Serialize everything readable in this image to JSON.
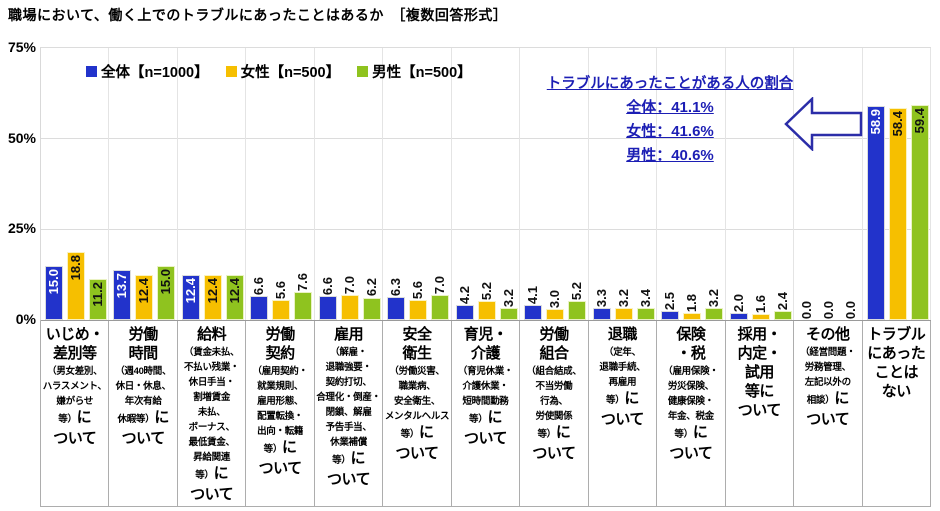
{
  "page_title": "職場において、働く上でのトラブルにあったことはあるか　［複数回答形式］",
  "annotation": {
    "title": "トラブルにあったことがある人の割合",
    "lines": [
      "全体：41.1%",
      "女性：41.6%",
      "男性：40.6%"
    ],
    "text_color": "#1c1eb4",
    "arrow_icon": "left-block-arrow"
  },
  "chart_data": {
    "type": "bar",
    "title": "職場において、働く上でのトラブルにあったことはあるか　［複数回答形式］",
    "xlabel": "",
    "ylabel": "",
    "ylim": [
      0,
      75
    ],
    "yticks": [
      "75%",
      "50%",
      "25%",
      "0%"
    ],
    "grid": "horizontal-and-category-separators",
    "legend_position": "top-left-inside",
    "value_label_format": "one-decimal, rotated 90° counterclockwise",
    "series": [
      {
        "key": "total",
        "name": "全体【n=1000】",
        "color": "#2233cb",
        "inside_label_color": "#ffffff"
      },
      {
        "key": "female",
        "name": "女性【n=500】",
        "color": "#f6bf00",
        "inside_label_color": "#111111"
      },
      {
        "key": "male",
        "name": "男性【n=500】",
        "color": "#8fc31f",
        "inside_label_color": "#111111"
      }
    ],
    "categories": [
      {
        "label": "いじめ・差別等（男女差別、ハラスメント、嫌がらせ等）について",
        "values": [
          15.0,
          18.8,
          11.2
        ],
        "label_lines": [
          [
            [
              "いじめ・",
              "b"
            ]
          ],
          [
            [
              "差別等",
              "b"
            ]
          ],
          [
            [
              "（男女差別、",
              "s"
            ]
          ],
          [
            [
              "ハラスメント、",
              "s"
            ]
          ],
          [
            [
              "嫌がらせ",
              "s"
            ]
          ],
          [
            [
              "等）",
              "s"
            ],
            [
              "に",
              "b"
            ]
          ],
          [
            [
              "ついて",
              "b"
            ]
          ]
        ]
      },
      {
        "label": "労働時間（週40時間、休日・休息、年次有給休暇等）について",
        "values": [
          13.7,
          12.4,
          15.0
        ],
        "label_lines": [
          [
            [
              "労働",
              "b"
            ]
          ],
          [
            [
              "時間",
              "b"
            ]
          ],
          [
            [
              "（週40時間、",
              "s"
            ]
          ],
          [
            [
              "休日・休息、",
              "s"
            ]
          ],
          [
            [
              "年次有給",
              "s"
            ]
          ],
          [
            [
              "休暇等）",
              "s"
            ],
            [
              "に",
              "b"
            ]
          ],
          [
            [
              "ついて",
              "b"
            ]
          ]
        ]
      },
      {
        "label": "給料（賃金未払、不払い残業・休日手当・割増賃金未払、ボーナス、最低賃金、昇給関連等）について",
        "values": [
          12.4,
          12.4,
          12.4
        ],
        "label_lines": [
          [
            [
              "給料",
              "b"
            ]
          ],
          [
            [
              "（賃金未払、",
              "s"
            ]
          ],
          [
            [
              "不払い残業・",
              "s"
            ]
          ],
          [
            [
              "休日手当・",
              "s"
            ]
          ],
          [
            [
              "割増賃金",
              "s"
            ]
          ],
          [
            [
              "未払、",
              "s"
            ]
          ],
          [
            [
              "ボーナス、",
              "s"
            ]
          ],
          [
            [
              "最低賃金、",
              "s"
            ]
          ],
          [
            [
              "昇給関連",
              "s"
            ]
          ],
          [
            [
              "等）",
              "s"
            ],
            [
              "に",
              "b"
            ]
          ],
          [
            [
              "ついて",
              "b"
            ]
          ]
        ]
      },
      {
        "label": "労働契約（雇用契約・就業規則、雇用形態、配置転換・出向・転籍等）について",
        "values": [
          6.6,
          5.6,
          7.6
        ],
        "label_lines": [
          [
            [
              "労働",
              "b"
            ]
          ],
          [
            [
              "契約",
              "b"
            ]
          ],
          [
            [
              "（雇用契約・",
              "s"
            ]
          ],
          [
            [
              "就業規則、",
              "s"
            ]
          ],
          [
            [
              "雇用形態、",
              "s"
            ]
          ],
          [
            [
              "配置転換・",
              "s"
            ]
          ],
          [
            [
              "出向・転籍",
              "s"
            ]
          ],
          [
            [
              "等）",
              "s"
            ],
            [
              "に",
              "b"
            ]
          ],
          [
            [
              "ついて",
              "b"
            ]
          ]
        ]
      },
      {
        "label": "雇用（解雇・退職強要・契約打切、合理化・倒産・閉鎖、解雇予告手当、休業補償等）について",
        "values": [
          6.6,
          7.0,
          6.2
        ],
        "label_lines": [
          [
            [
              "雇用",
              "b"
            ]
          ],
          [
            [
              "（解雇・",
              "s"
            ]
          ],
          [
            [
              "退職強要・",
              "s"
            ]
          ],
          [
            [
              "契約打切、",
              "s"
            ]
          ],
          [
            [
              "合理化・倒産・",
              "s"
            ]
          ],
          [
            [
              "閉鎖、解雇",
              "s"
            ]
          ],
          [
            [
              "予告手当、",
              "s"
            ]
          ],
          [
            [
              "休業補償",
              "s"
            ]
          ],
          [
            [
              "等）",
              "s"
            ],
            [
              "に",
              "b"
            ]
          ],
          [
            [
              "ついて",
              "b"
            ]
          ]
        ]
      },
      {
        "label": "安全衛生（労働災害、職業病、安全衛生、メンタルヘルス等）について",
        "values": [
          6.3,
          5.6,
          7.0
        ],
        "label_lines": [
          [
            [
              "安全",
              "b"
            ]
          ],
          [
            [
              "衛生",
              "b"
            ]
          ],
          [
            [
              "（労働災害、",
              "s"
            ]
          ],
          [
            [
              "職業病、",
              "s"
            ]
          ],
          [
            [
              "安全衛生、",
              "s"
            ]
          ],
          [
            [
              "メンタルヘルス",
              "s"
            ]
          ],
          [
            [
              "等）",
              "s"
            ],
            [
              "に",
              "b"
            ]
          ],
          [
            [
              "ついて",
              "b"
            ]
          ]
        ]
      },
      {
        "label": "育児・介護（育児休業・介護休業・短時間勤務等）について",
        "values": [
          4.2,
          5.2,
          3.2
        ],
        "label_lines": [
          [
            [
              "育児・",
              "b"
            ]
          ],
          [
            [
              "介護",
              "b"
            ]
          ],
          [
            [
              "（育児休業・",
              "s"
            ]
          ],
          [
            [
              "介護休業・",
              "s"
            ]
          ],
          [
            [
              "短時間勤務",
              "s"
            ]
          ],
          [
            [
              "等）",
              "s"
            ],
            [
              "に",
              "b"
            ]
          ],
          [
            [
              "ついて",
              "b"
            ]
          ]
        ]
      },
      {
        "label": "労働組合（組合結成、不当労働行為、労使関係等）について",
        "values": [
          4.1,
          3.0,
          5.2
        ],
        "label_lines": [
          [
            [
              "労働",
              "b"
            ]
          ],
          [
            [
              "組合",
              "b"
            ]
          ],
          [
            [
              "（組合結成、",
              "s"
            ]
          ],
          [
            [
              "不当労働",
              "s"
            ]
          ],
          [
            [
              "行為、",
              "s"
            ]
          ],
          [
            [
              "労使関係",
              "s"
            ]
          ],
          [
            [
              "等）",
              "s"
            ],
            [
              "に",
              "b"
            ]
          ],
          [
            [
              "ついて",
              "b"
            ]
          ]
        ]
      },
      {
        "label": "退職（定年、退職手続、再雇用等）について",
        "values": [
          3.3,
          3.2,
          3.4
        ],
        "label_lines": [
          [
            [
              "退職",
              "b"
            ]
          ],
          [
            [
              "（定年、",
              "s"
            ]
          ],
          [
            [
              "退職手続、",
              "s"
            ]
          ],
          [
            [
              "再雇用",
              "s"
            ]
          ],
          [
            [
              "等）",
              "s"
            ],
            [
              "に",
              "b"
            ]
          ],
          [
            [
              "ついて",
              "b"
            ]
          ]
        ]
      },
      {
        "label": "保険・税（雇用保険・労災保険、健康保険・年金、税金等）について",
        "values": [
          2.5,
          1.8,
          3.2
        ],
        "label_lines": [
          [
            [
              "保険",
              "b"
            ]
          ],
          [
            [
              "・税",
              "b"
            ]
          ],
          [
            [
              "（雇用保険・",
              "s"
            ]
          ],
          [
            [
              "労災保険、",
              "s"
            ]
          ],
          [
            [
              "健康保険・",
              "s"
            ]
          ],
          [
            [
              "年金、税金",
              "s"
            ]
          ],
          [
            [
              "等）",
              "s"
            ],
            [
              "に",
              "b"
            ]
          ],
          [
            [
              "ついて",
              "b"
            ]
          ]
        ]
      },
      {
        "label": "採用・内定・試用等について",
        "values": [
          2.0,
          1.6,
          2.4
        ],
        "label_lines": [
          [
            [
              "採用・",
              "b"
            ]
          ],
          [
            [
              "内定・",
              "b"
            ]
          ],
          [
            [
              "試用",
              "b"
            ]
          ],
          [
            [
              "等に",
              "b"
            ]
          ],
          [
            [
              "ついて",
              "b"
            ]
          ]
        ]
      },
      {
        "label": "その他（経営問題・労務管理、左記以外の相談）について",
        "values": [
          0.0,
          0.0,
          0.0
        ],
        "label_lines": [
          [
            [
              "その他",
              "b"
            ]
          ],
          [
            [
              "（経営問題・",
              "s"
            ]
          ],
          [
            [
              "労務管理、",
              "s"
            ]
          ],
          [
            [
              "左記以外の",
              "s"
            ]
          ],
          [
            [
              "相談）",
              "s"
            ],
            [
              "に",
              "b"
            ]
          ],
          [
            [
              "ついて",
              "b"
            ]
          ]
        ]
      },
      {
        "label": "トラブルにあったことはない",
        "values": [
          58.9,
          58.4,
          59.4
        ],
        "label_lines": [
          [
            [
              "トラブル",
              "b"
            ]
          ],
          [
            [
              "にあった",
              "b"
            ]
          ],
          [
            [
              "ことは",
              "b"
            ]
          ],
          [
            [
              "ない",
              "b"
            ]
          ]
        ]
      }
    ]
  }
}
